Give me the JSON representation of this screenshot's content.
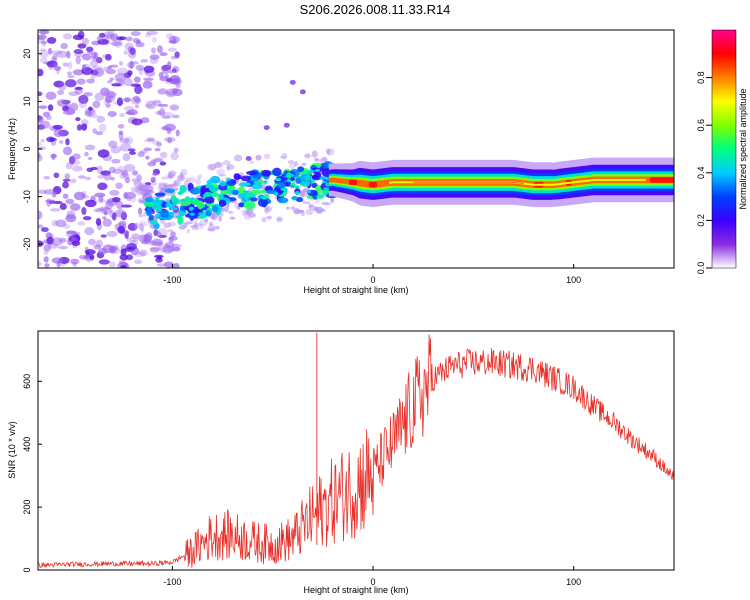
{
  "title": "S206.2026.008.11.33.R14",
  "chart_data": [
    {
      "type": "heatmap",
      "title": "S206.2026.008.11.33.R14",
      "xlabel": "Height of straight line (km)",
      "ylabel": "Frequency (Hz)",
      "xlim": [
        -167,
        150
      ],
      "ylim": [
        -25,
        25
      ],
      "x_ticks": [
        "-100",
        "0",
        "100"
      ],
      "y_ticks": [
        "-20",
        "-10",
        "0",
        "10",
        "20"
      ],
      "colorbar": {
        "label": "Normalized spectral amplitude",
        "range": [
          0,
          1
        ],
        "ticks": [
          "0.0",
          "0.2",
          "0.4",
          "0.6",
          "0.8"
        ],
        "colors": [
          "#ffffff",
          "#8a2be2",
          "#3a00ff",
          "#0040ff",
          "#00ccff",
          "#00ff80",
          "#80ff00",
          "#ffff00",
          "#ff8000",
          "#ff0000",
          "#ff0090"
        ]
      },
      "ridge": {
        "x": [
          -110,
          -90,
          -70,
          -50,
          -30,
          -20,
          -10,
          0,
          10,
          30,
          50,
          70,
          80,
          90,
          100,
          110,
          120,
          140,
          150
        ],
        "frequency": [
          -13,
          -11,
          -9,
          -8,
          -7,
          -6.5,
          -7,
          -7.5,
          -7,
          -7,
          -7,
          -7,
          -7.5,
          -7.5,
          -7,
          -6.5,
          -6.5,
          -6.5,
          -6.5
        ],
        "amplitude": [
          0.35,
          0.4,
          0.4,
          0.4,
          0.45,
          0.5,
          0.6,
          0.95,
          0.75,
          0.75,
          0.75,
          0.75,
          0.9,
          0.7,
          0.75,
          0.75,
          0.85,
          0.95,
          0.95
        ]
      }
    },
    {
      "type": "line",
      "xlabel": "Height of straight line (km)",
      "ylabel": "SNR (10 * v/v)",
      "xlim": [
        -167,
        150
      ],
      "ylim": [
        0,
        760
      ],
      "x_ticks": [
        "-100",
        "0",
        "100"
      ],
      "y_ticks": [
        "0",
        "200",
        "400",
        "600"
      ],
      "series": [
        {
          "name": "SNR",
          "color": "#e8302a",
          "x": [
            -167,
            -150,
            -130,
            -110,
            -100,
            -90,
            -80,
            -70,
            -60,
            -50,
            -40,
            -30,
            -20,
            -10,
            0,
            10,
            20,
            30,
            40,
            50,
            60,
            70,
            80,
            90,
            100,
            110,
            120,
            130,
            140,
            150
          ],
          "y": [
            15,
            18,
            20,
            20,
            25,
            60,
            110,
            110,
            90,
            80,
            100,
            170,
            220,
            260,
            310,
            400,
            520,
            610,
            650,
            660,
            660,
            650,
            640,
            610,
            580,
            520,
            470,
            410,
            360,
            290
          ]
        }
      ]
    }
  ]
}
